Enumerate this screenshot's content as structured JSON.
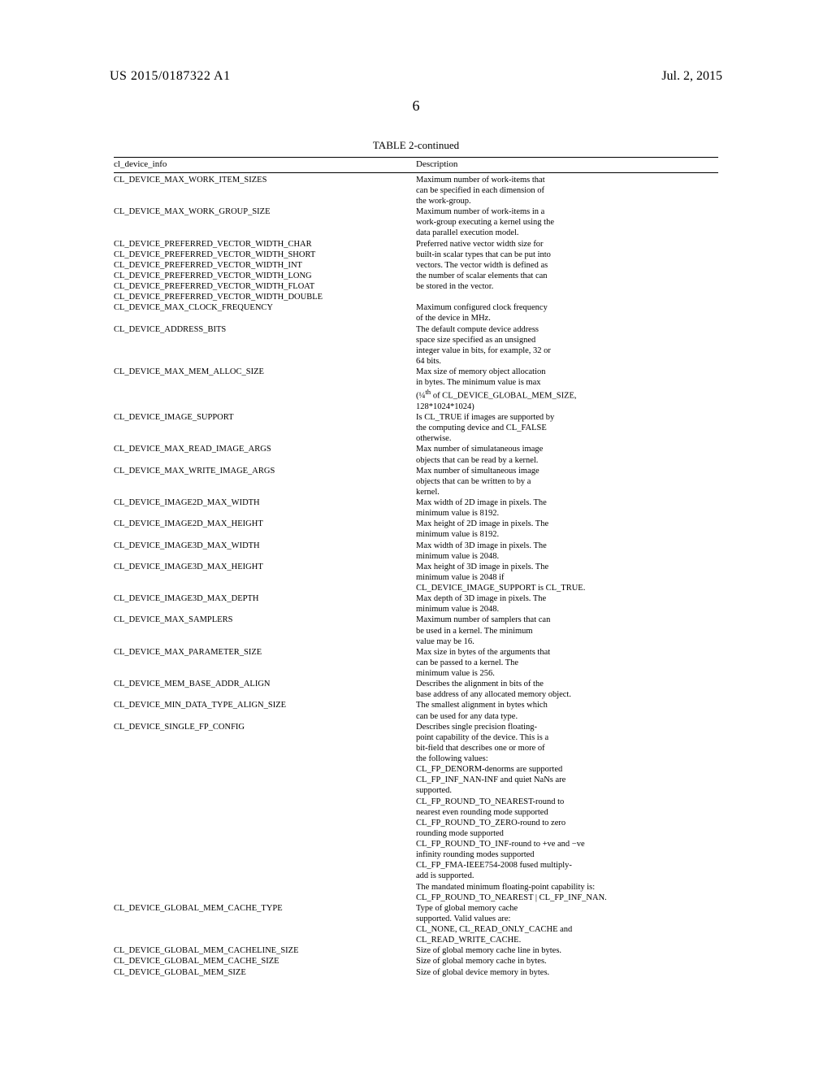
{
  "header": {
    "doc_number": "US 2015/0187322 A1",
    "date": "Jul. 2, 2015",
    "page_number": "6"
  },
  "table": {
    "caption": "TABLE 2-continued",
    "head": {
      "c1": "cl_device_info",
      "c2": "Description"
    },
    "rows": [
      {
        "name": "CL_DEVICE_MAX_WORK_ITEM_SIZES",
        "desc": [
          "Maximum number of work-items that",
          "can be specified in each dimension of",
          "the work-group."
        ]
      },
      {
        "name": "CL_DEVICE_MAX_WORK_GROUP_SIZE",
        "desc": [
          "Maximum number of work-items in a",
          "work-group executing a kernel using the",
          "data parallel execution model."
        ]
      },
      {
        "name": "CL_DEVICE_PREFERRED_VECTOR_WIDTH_CHAR\nCL_DEVICE_PREFERRED_VECTOR_WIDTH_SHORT\nCL_DEVICE_PREFERRED_VECTOR_WIDTH_INT\nCL_DEVICE_PREFERRED_VECTOR_WIDTH_LONG\nCL_DEVICE_PREFERRED_VECTOR_WIDTH_FLOAT\nCL_DEVICE_PREFERRED_VECTOR_WIDTH_DOUBLE",
        "desc": [
          "Preferred native vector width size for",
          "built-in scalar types that can be put into",
          "vectors. The vector width is defined as",
          "the number of scalar elements that can",
          "be stored in the vector."
        ]
      },
      {
        "name": "CL_DEVICE_MAX_CLOCK_FREQUENCY",
        "desc": [
          "Maximum configured clock frequency",
          "of the device in MHz."
        ]
      },
      {
        "name": "CL_DEVICE_ADDRESS_BITS",
        "desc": [
          "The default compute device address",
          "space size specified as an unsigned",
          "integer value in bits, for example, 32 or",
          "64 bits."
        ]
      },
      {
        "name": "CL_DEVICE_MAX_MEM_ALLOC_SIZE",
        "desc": [
          "Max size of memory object allocation",
          "in bytes. The minimum value is max",
          "(¼<sup>th</sup> of CL_DEVICE_GLOBAL_MEM_SIZE,",
          "128*1024*1024)"
        ],
        "html": true
      },
      {
        "name": "CL_DEVICE_IMAGE_SUPPORT",
        "desc": [
          "Is CL_TRUE if images are supported by",
          "the computing device and CL_FALSE",
          "otherwise."
        ]
      },
      {
        "name": "CL_DEVICE_MAX_READ_IMAGE_ARGS",
        "desc": [
          "Max number of simulataneous image",
          "objects that can be read by a kernel."
        ]
      },
      {
        "name": "CL_DEVICE_MAX_WRITE_IMAGE_ARGS",
        "desc": [
          "Max number of simultaneous image",
          "objects that can be written to by a",
          "kernel."
        ]
      },
      {
        "name": "CL_DEVICE_IMAGE2D_MAX_WIDTH",
        "desc": [
          "Max width of 2D image in pixels. The",
          "minimum value is 8192."
        ]
      },
      {
        "name": "CL_DEVICE_IMAGE2D_MAX_HEIGHT",
        "desc": [
          "Max height of 2D image in pixels. The",
          "minimum value is 8192."
        ]
      },
      {
        "name": "CL_DEVICE_IMAGE3D_MAX_WIDTH",
        "desc": [
          "Max width of 3D image in pixels. The",
          "minimum value is 2048."
        ]
      },
      {
        "name": "CL_DEVICE_IMAGE3D_MAX_HEIGHT",
        "desc": [
          "Max height of 3D image in pixels. The",
          "minimum value is 2048 if",
          "CL_DEVICE_IMAGE_SUPPORT is CL_TRUE."
        ]
      },
      {
        "name": "CL_DEVICE_IMAGE3D_MAX_DEPTH",
        "desc": [
          "Max depth of 3D image in pixels. The",
          "minimum value is 2048."
        ]
      },
      {
        "name": "CL_DEVICE_MAX_SAMPLERS",
        "desc": [
          "Maximum number of samplers that can",
          "be used in a kernel. The minimum",
          "value may be 16."
        ]
      },
      {
        "name": "CL_DEVICE_MAX_PARAMETER_SIZE",
        "desc": [
          "Max size in bytes of the arguments that",
          "can be passed to a kernel. The",
          "minimum value is 256."
        ]
      },
      {
        "name": "CL_DEVICE_MEM_BASE_ADDR_ALIGN",
        "desc": [
          "Describes the alignment in bits of the",
          "base address of any allocated memory object."
        ]
      },
      {
        "name": "CL_DEVICE_MIN_DATA_TYPE_ALIGN_SIZE",
        "desc": [
          "The smallest alignment in bytes which",
          "can be used for any data type."
        ]
      },
      {
        "name": "CL_DEVICE_SINGLE_FP_CONFIG",
        "desc": [
          "Describes single precision floating-",
          "point capability of the device. This is a",
          "bit-field that describes one or more of",
          "the following values:",
          "CL_FP_DENORM-denorms are supported",
          "CL_FP_INF_NAN-INF and quiet NaNs are",
          "supported.",
          "CL_FP_ROUND_TO_NEAREST-round to",
          "nearest even rounding mode supported",
          "CL_FP_ROUND_TO_ZERO-round to zero",
          "rounding mode supported",
          "CL_FP_ROUND_TO_INF-round to +ve and −ve",
          "infinity rounding modes supported",
          "CL_FP_FMA-IEEE754-2008 fused multiply-",
          "add is supported.",
          "The mandated minimum floating-point capability is:",
          "CL_FP_ROUND_TO_NEAREST | CL_FP_INF_NAN."
        ]
      },
      {
        "name": "CL_DEVICE_GLOBAL_MEM_CACHE_TYPE",
        "desc": [
          "Type of global memory cache",
          "supported. Valid values are:",
          "CL_NONE, CL_READ_ONLY_CACHE and",
          "CL_READ_WRITE_CACHE."
        ]
      },
      {
        "name": "CL_DEVICE_GLOBAL_MEM_CACHELINE_SIZE",
        "desc": [
          "Size of global memory cache line in bytes."
        ]
      },
      {
        "name": "CL_DEVICE_GLOBAL_MEM_CACHE_SIZE",
        "desc": [
          "Size of global memory cache in bytes."
        ]
      },
      {
        "name": "CL_DEVICE_GLOBAL_MEM_SIZE",
        "desc": [
          "Size of global device memory in bytes."
        ]
      }
    ]
  }
}
